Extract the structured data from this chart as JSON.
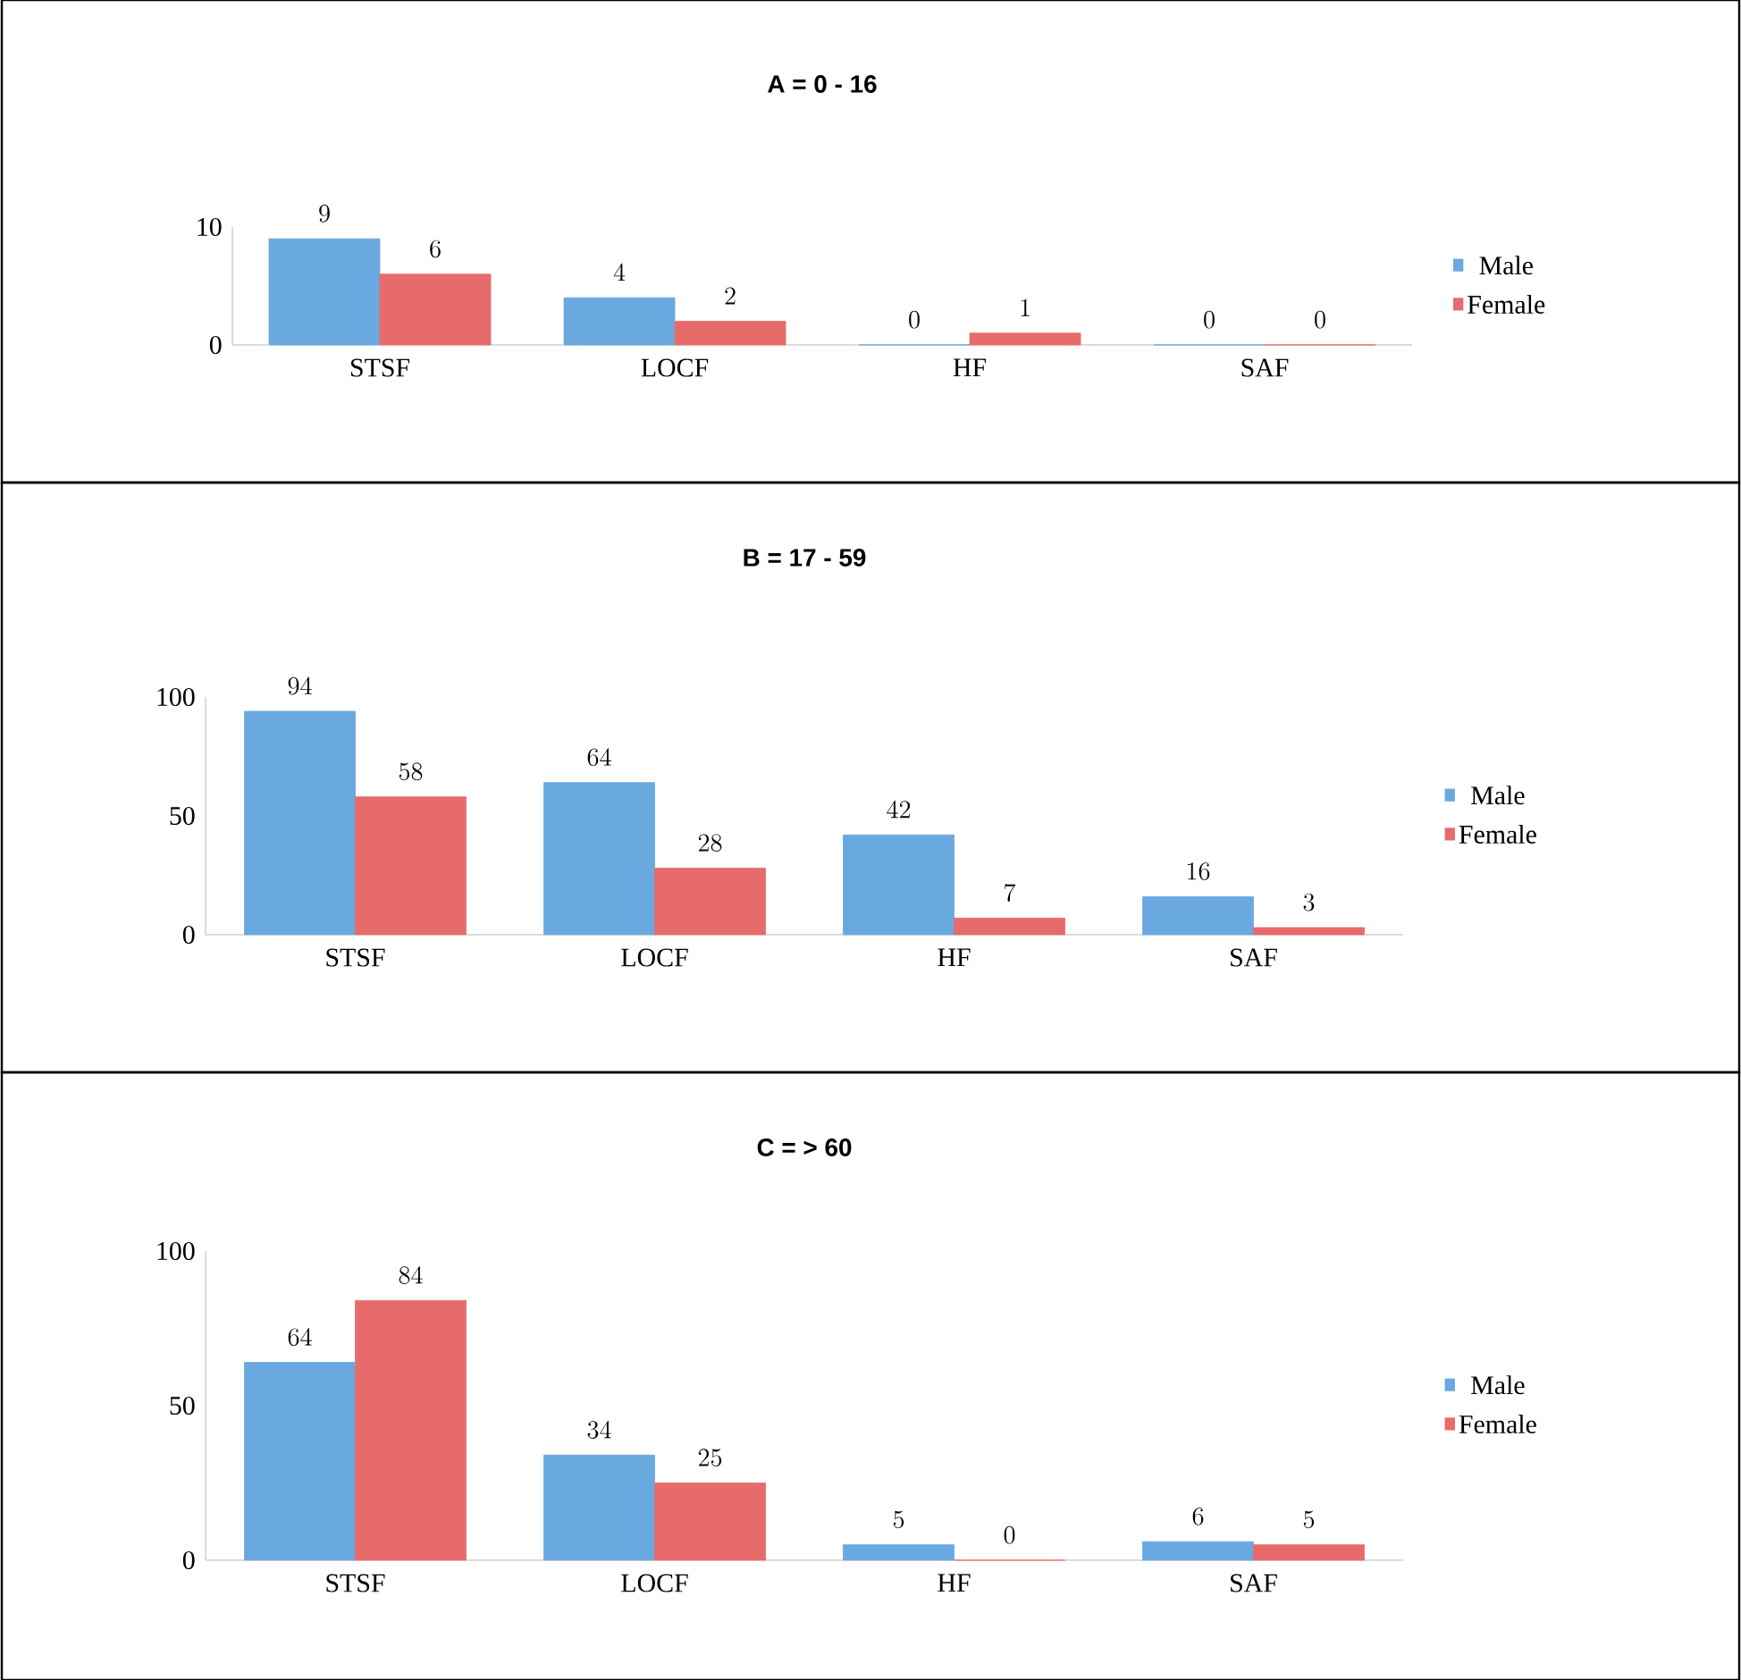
{
  "chart_data": [
    {
      "type": "bar",
      "title": "A = 0 - 16",
      "categories": [
        "STSF",
        "LOCF",
        "HF",
        "SAF"
      ],
      "series": [
        {
          "name": "Male",
          "color": "#6aa8e0",
          "values": [
            9,
            4,
            0,
            0
          ]
        },
        {
          "name": "Female",
          "color": "#e86b6b",
          "values": [
            6,
            2,
            1,
            0
          ]
        }
      ],
      "ylim": [
        0,
        10
      ],
      "yticks": [
        0,
        10
      ],
      "data_labels": true,
      "legend": "right",
      "grid": false
    },
    {
      "type": "bar",
      "title": "B = 17 - 59",
      "categories": [
        "STSF",
        "LOCF",
        "HF",
        "SAF"
      ],
      "series": [
        {
          "name": "Male",
          "color": "#6aa8e0",
          "values": [
            94,
            64,
            42,
            16
          ]
        },
        {
          "name": "Female",
          "color": "#e86b6b",
          "values": [
            58,
            28,
            7,
            3
          ]
        }
      ],
      "ylim": [
        0,
        100
      ],
      "yticks": [
        0,
        50,
        100
      ],
      "data_labels": true,
      "legend": "right",
      "grid": false
    },
    {
      "type": "bar",
      "title": "C = > 60",
      "categories": [
        "STSF",
        "LOCF",
        "HF",
        "SAF"
      ],
      "series": [
        {
          "name": "Male",
          "color": "#6aa8e0",
          "values": [
            64,
            34,
            5,
            6
          ]
        },
        {
          "name": "Female",
          "color": "#e86b6b",
          "values": [
            84,
            25,
            0,
            5
          ]
        }
      ],
      "ylim": [
        0,
        100
      ],
      "yticks": [
        0,
        50,
        100
      ],
      "data_labels": true,
      "legend": "right",
      "grid": false
    }
  ]
}
